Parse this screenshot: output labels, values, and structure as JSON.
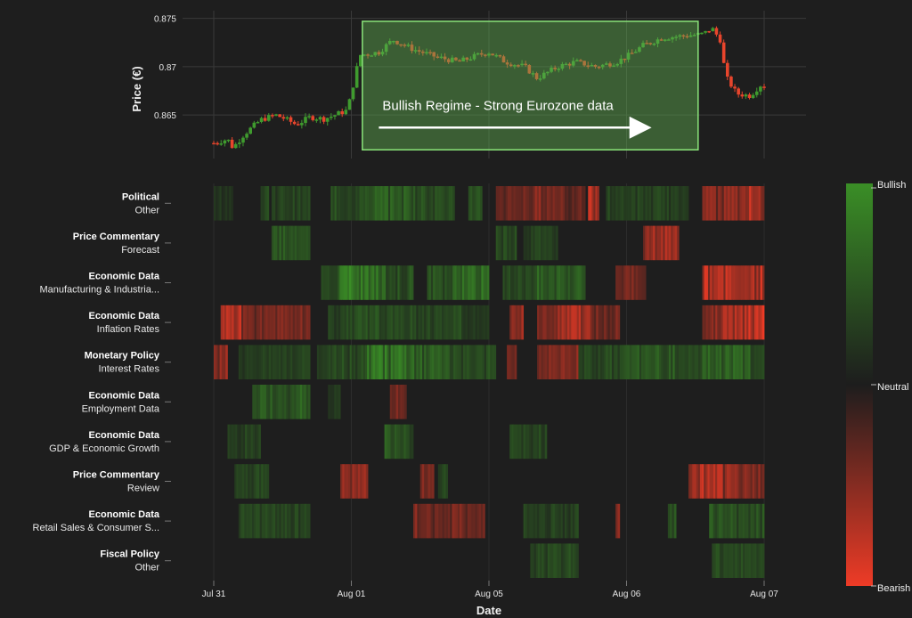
{
  "chart_data": {
    "price_panel": {
      "type": "candlestick",
      "ylabel": "Price (€)",
      "yticks": [
        0.865,
        0.87,
        0.875
      ],
      "ytick_labels": [
        "0.865",
        "0.87",
        "0.875"
      ],
      "ylim": [
        0.8605,
        0.8758
      ],
      "xlim": [
        -0.05,
        4.1
      ],
      "grid": true,
      "up_color": "#3f9b2e",
      "down_color": "#e8452c",
      "price_path": [
        [
          0.0,
          0.8621
        ],
        [
          0.1,
          0.8625
        ],
        [
          0.14,
          0.8616
        ],
        [
          0.22,
          0.863
        ],
        [
          0.34,
          0.8645
        ],
        [
          0.45,
          0.865
        ],
        [
          0.52,
          0.8646
        ],
        [
          0.6,
          0.864
        ],
        [
          0.7,
          0.8648
        ],
        [
          0.8,
          0.8646
        ],
        [
          0.88,
          0.865
        ],
        [
          0.97,
          0.8655
        ],
        [
          1.0,
          0.8672
        ],
        [
          1.06,
          0.8712
        ],
        [
          1.2,
          0.8715
        ],
        [
          1.3,
          0.8728
        ],
        [
          1.45,
          0.8718
        ],
        [
          1.62,
          0.871
        ],
        [
          1.78,
          0.8705
        ],
        [
          1.92,
          0.8712
        ],
        [
          2.0,
          0.8715
        ],
        [
          2.12,
          0.8705
        ],
        [
          2.26,
          0.87
        ],
        [
          2.35,
          0.8688
        ],
        [
          2.5,
          0.87
        ],
        [
          2.63,
          0.8705
        ],
        [
          2.78,
          0.87
        ],
        [
          2.93,
          0.8705
        ],
        [
          3.02,
          0.8712
        ],
        [
          3.12,
          0.8722
        ],
        [
          3.26,
          0.873
        ],
        [
          3.42,
          0.8732
        ],
        [
          3.56,
          0.8734
        ],
        [
          3.62,
          0.874
        ],
        [
          3.68,
          0.8728
        ],
        [
          3.72,
          0.869
        ],
        [
          3.8,
          0.8672
        ],
        [
          3.9,
          0.867
        ],
        [
          3.97,
          0.8681
        ],
        [
          4.0,
          0.868
        ]
      ],
      "annotation": {
        "text": "Bullish Regime - Strong Eurozone data",
        "x_start": 1.08,
        "x_end": 3.52,
        "y_top": 0.8747,
        "y_bottom": 0.8614,
        "arrow_x_start": 1.2,
        "arrow_x_end": 3.15,
        "arrow_y": 0.8637,
        "fill": "#5fae4f",
        "stroke": "#8ae57a"
      }
    },
    "heatmap_panel": {
      "type": "heatmap",
      "xlabel": "Date",
      "x_tick_positions": [
        0,
        1,
        2,
        3,
        4
      ],
      "x_tick_labels": [
        "Jul 31",
        "Aug 01",
        "Aug 05",
        "Aug 06",
        "Aug 07"
      ],
      "categories": [
        {
          "title": "Political",
          "subtitle": "Other",
          "segments": [
            [
              0.0,
              0.14,
              0.25
            ],
            [
              0.34,
              0.4,
              0.4
            ],
            [
              0.42,
              0.7,
              0.35
            ],
            [
              0.85,
              1.1,
              0.45
            ],
            [
              1.1,
              1.45,
              0.6
            ],
            [
              1.45,
              1.75,
              0.5
            ],
            [
              1.85,
              1.95,
              0.45
            ],
            [
              2.05,
              2.32,
              -0.4
            ],
            [
              2.32,
              2.55,
              -0.5
            ],
            [
              2.55,
              2.7,
              -0.35
            ],
            [
              2.72,
              2.8,
              -0.75
            ],
            [
              2.85,
              3.45,
              0.35
            ],
            [
              3.55,
              3.85,
              -0.55
            ],
            [
              3.85,
              4.0,
              -0.75
            ]
          ]
        },
        {
          "title": "Price Commentary",
          "subtitle": "Forecast",
          "segments": [
            [
              0.42,
              0.7,
              0.5
            ],
            [
              2.05,
              2.2,
              0.45
            ],
            [
              2.25,
              2.5,
              0.35
            ],
            [
              3.12,
              3.38,
              -0.65
            ]
          ]
        },
        {
          "title": "Economic Data",
          "subtitle": "Manufacturing & Industria...",
          "segments": [
            [
              0.78,
              0.9,
              0.4
            ],
            [
              0.9,
              1.25,
              0.85
            ],
            [
              1.25,
              1.45,
              0.45
            ],
            [
              1.55,
              1.75,
              0.55
            ],
            [
              1.75,
              2.0,
              0.75
            ],
            [
              2.1,
              2.35,
              0.45
            ],
            [
              2.35,
              2.7,
              0.6
            ],
            [
              2.92,
              3.14,
              -0.45
            ],
            [
              3.55,
              4.0,
              -0.8
            ]
          ]
        },
        {
          "title": "Economic Data",
          "subtitle": "Inflation Rates",
          "segments": [
            [
              0.05,
              0.2,
              -0.75
            ],
            [
              0.2,
              0.35,
              -0.45
            ],
            [
              0.35,
              0.7,
              -0.5
            ],
            [
              0.83,
              0.95,
              0.35
            ],
            [
              0.95,
              1.3,
              0.45
            ],
            [
              1.3,
              1.8,
              0.4
            ],
            [
              1.8,
              2.0,
              0.3
            ],
            [
              2.15,
              2.25,
              -0.55
            ],
            [
              2.35,
              2.5,
              -0.6
            ],
            [
              2.5,
              2.75,
              -0.7
            ],
            [
              2.75,
              2.95,
              -0.45
            ],
            [
              3.55,
              3.7,
              -0.55
            ],
            [
              3.7,
              4.0,
              -0.85
            ]
          ]
        },
        {
          "title": "Monetary Policy",
          "subtitle": "Interest Rates",
          "segments": [
            [
              0.0,
              0.1,
              -0.6
            ],
            [
              0.18,
              0.4,
              0.3
            ],
            [
              0.4,
              0.7,
              0.35
            ],
            [
              0.75,
              1.1,
              0.4
            ],
            [
              1.1,
              1.4,
              0.85
            ],
            [
              1.4,
              1.7,
              0.6
            ],
            [
              1.7,
              2.05,
              0.45
            ],
            [
              2.13,
              2.2,
              -0.45
            ],
            [
              2.35,
              2.65,
              -0.5
            ],
            [
              2.65,
              2.95,
              0.4
            ],
            [
              2.95,
              3.35,
              0.55
            ],
            [
              3.35,
              3.55,
              0.4
            ],
            [
              3.55,
              3.9,
              0.65
            ],
            [
              3.9,
              4.0,
              0.4
            ]
          ]
        },
        {
          "title": "Economic Data",
          "subtitle": "Employment Data",
          "segments": [
            [
              0.28,
              0.7,
              0.55
            ],
            [
              0.83,
              0.92,
              0.3
            ],
            [
              1.28,
              1.4,
              -0.4
            ]
          ]
        },
        {
          "title": "Economic Data",
          "subtitle": "GDP & Economic Growth",
          "segments": [
            [
              0.1,
              0.34,
              0.35
            ],
            [
              1.24,
              1.3,
              0.55
            ],
            [
              1.3,
              1.45,
              0.45
            ],
            [
              2.15,
              2.42,
              0.4
            ]
          ]
        },
        {
          "title": "Price Commentary",
          "subtitle": "Review",
          "segments": [
            [
              0.15,
              0.4,
              0.4
            ],
            [
              0.92,
              1.12,
              -0.6
            ],
            [
              1.5,
              1.6,
              -0.45
            ],
            [
              1.63,
              1.7,
              0.35
            ],
            [
              3.45,
              3.7,
              -0.7
            ],
            [
              3.7,
              4.0,
              -0.55
            ]
          ]
        },
        {
          "title": "Economic Data",
          "subtitle": "Retail Sales & Consumer S...",
          "segments": [
            [
              0.18,
              0.7,
              0.4
            ],
            [
              1.45,
              1.97,
              -0.45
            ],
            [
              2.25,
              2.65,
              0.35
            ],
            [
              2.92,
              2.95,
              -0.5
            ],
            [
              3.3,
              3.36,
              0.45
            ],
            [
              3.6,
              4.0,
              0.5
            ]
          ]
        },
        {
          "title": "Fiscal Policy",
          "subtitle": "Other",
          "segments": [
            [
              2.3,
              2.65,
              0.4
            ],
            [
              3.62,
              4.0,
              0.45
            ]
          ]
        }
      ]
    },
    "colorbar": {
      "labels": [
        "Bullish",
        "Neutral",
        "Bearish"
      ],
      "colors": {
        "bullish": "#3a8e26",
        "neutral": "#1d1d1d",
        "bearish": "#ee3b26"
      }
    }
  }
}
